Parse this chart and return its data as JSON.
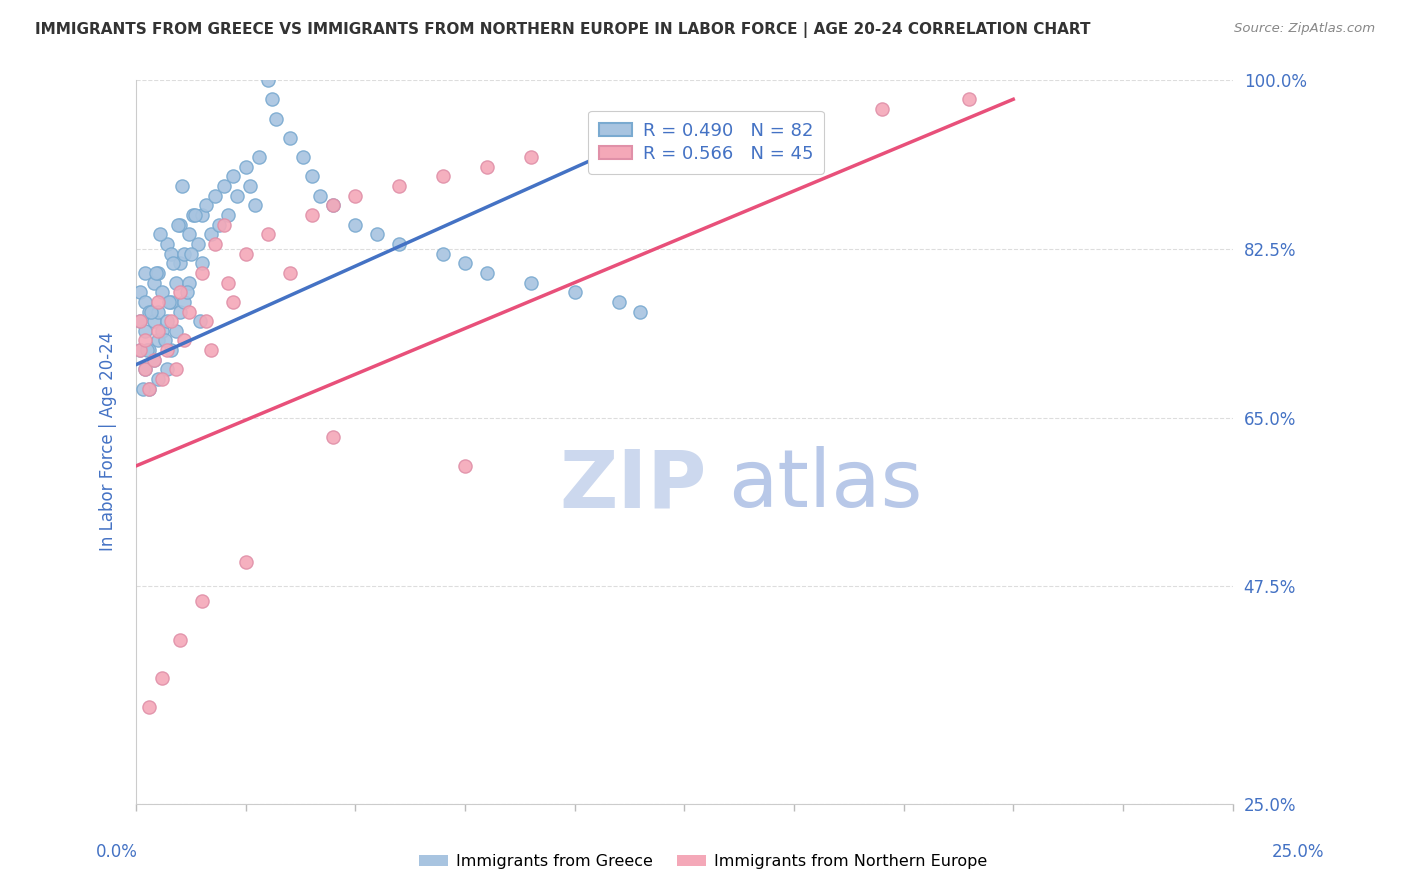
{
  "title": "IMMIGRANTS FROM GREECE VS IMMIGRANTS FROM NORTHERN EUROPE IN LABOR FORCE | AGE 20-24 CORRELATION CHART",
  "source": "Source: ZipAtlas.com",
  "ylabel": "In Labor Force | Age 20-24",
  "ytick_vals": [
    100.0,
    82.5,
    65.0,
    47.5,
    25.0
  ],
  "ytick_labels": [
    "100.0%",
    "82.5%",
    "65.0%",
    "47.5%",
    "25.0%"
  ],
  "xmin": 0.0,
  "xmax": 25.0,
  "ymin": 25.0,
  "ymax": 100.0,
  "greece_R": 0.49,
  "greece_N": 82,
  "northern_R": 0.566,
  "northern_N": 45,
  "greece_color": "#a8c4e0",
  "northern_color": "#f4a8b8",
  "greece_line_color": "#4472c4",
  "northern_line_color": "#e8507a",
  "axis_label_color": "#4472c4",
  "source_color": "#888888",
  "title_color": "#333333",
  "greece_x": [
    0.1,
    0.1,
    0.1,
    0.2,
    0.2,
    0.2,
    0.2,
    0.3,
    0.3,
    0.3,
    0.4,
    0.4,
    0.4,
    0.5,
    0.5,
    0.5,
    0.5,
    0.6,
    0.6,
    0.7,
    0.7,
    0.7,
    0.8,
    0.8,
    0.8,
    0.9,
    0.9,
    1.0,
    1.0,
    1.0,
    1.1,
    1.1,
    1.2,
    1.2,
    1.3,
    1.4,
    1.5,
    1.5,
    1.6,
    1.7,
    1.8,
    1.9,
    2.0,
    2.1,
    2.2,
    2.3,
    2.5,
    2.6,
    2.7,
    2.8,
    3.0,
    3.1,
    3.2,
    3.5,
    3.8,
    4.0,
    4.2,
    4.5,
    5.0,
    5.5,
    6.0,
    7.0,
    7.5,
    8.0,
    9.0,
    10.0,
    11.0,
    11.5,
    0.15,
    0.25,
    0.35,
    0.45,
    0.55,
    0.65,
    0.75,
    0.85,
    0.95,
    1.05,
    1.15,
    1.25,
    1.35,
    1.45
  ],
  "greece_y": [
    72,
    75,
    78,
    70,
    74,
    77,
    80,
    68,
    72,
    76,
    71,
    75,
    79,
    69,
    73,
    76,
    80,
    74,
    78,
    70,
    75,
    83,
    72,
    77,
    82,
    74,
    79,
    76,
    81,
    85,
    77,
    82,
    79,
    84,
    86,
    83,
    81,
    86,
    87,
    84,
    88,
    85,
    89,
    86,
    90,
    88,
    91,
    89,
    87,
    92,
    100,
    98,
    96,
    94,
    92,
    90,
    88,
    87,
    85,
    84,
    83,
    82,
    81,
    80,
    79,
    78,
    77,
    76,
    68,
    72,
    76,
    80,
    84,
    73,
    77,
    81,
    85,
    89,
    78,
    82,
    86,
    75
  ],
  "northern_x": [
    0.1,
    0.1,
    0.2,
    0.2,
    0.3,
    0.4,
    0.5,
    0.5,
    0.6,
    0.7,
    0.8,
    0.9,
    1.0,
    1.1,
    1.2,
    1.5,
    1.6,
    1.7,
    1.8,
    2.0,
    2.1,
    2.2,
    2.5,
    3.0,
    3.5,
    4.0,
    4.5,
    5.0,
    6.0,
    7.0,
    8.0,
    9.0,
    10.5,
    12.0,
    13.5,
    15.0,
    17.0,
    19.0,
    0.3,
    0.6,
    1.0,
    1.5,
    2.5,
    4.5,
    7.5
  ],
  "northern_y": [
    72,
    75,
    73,
    70,
    68,
    71,
    74,
    77,
    69,
    72,
    75,
    70,
    78,
    73,
    76,
    80,
    75,
    72,
    83,
    85,
    79,
    77,
    82,
    84,
    80,
    86,
    87,
    88,
    89,
    90,
    91,
    92,
    93,
    94,
    95,
    96,
    97,
    98,
    35,
    38,
    42,
    46,
    50,
    63,
    60
  ],
  "greece_line_x": [
    0.0,
    12.0
  ],
  "greece_line_y": [
    70.5,
    95.0
  ],
  "northern_line_x": [
    0.0,
    20.0
  ],
  "northern_line_y": [
    60.0,
    98.0
  ]
}
